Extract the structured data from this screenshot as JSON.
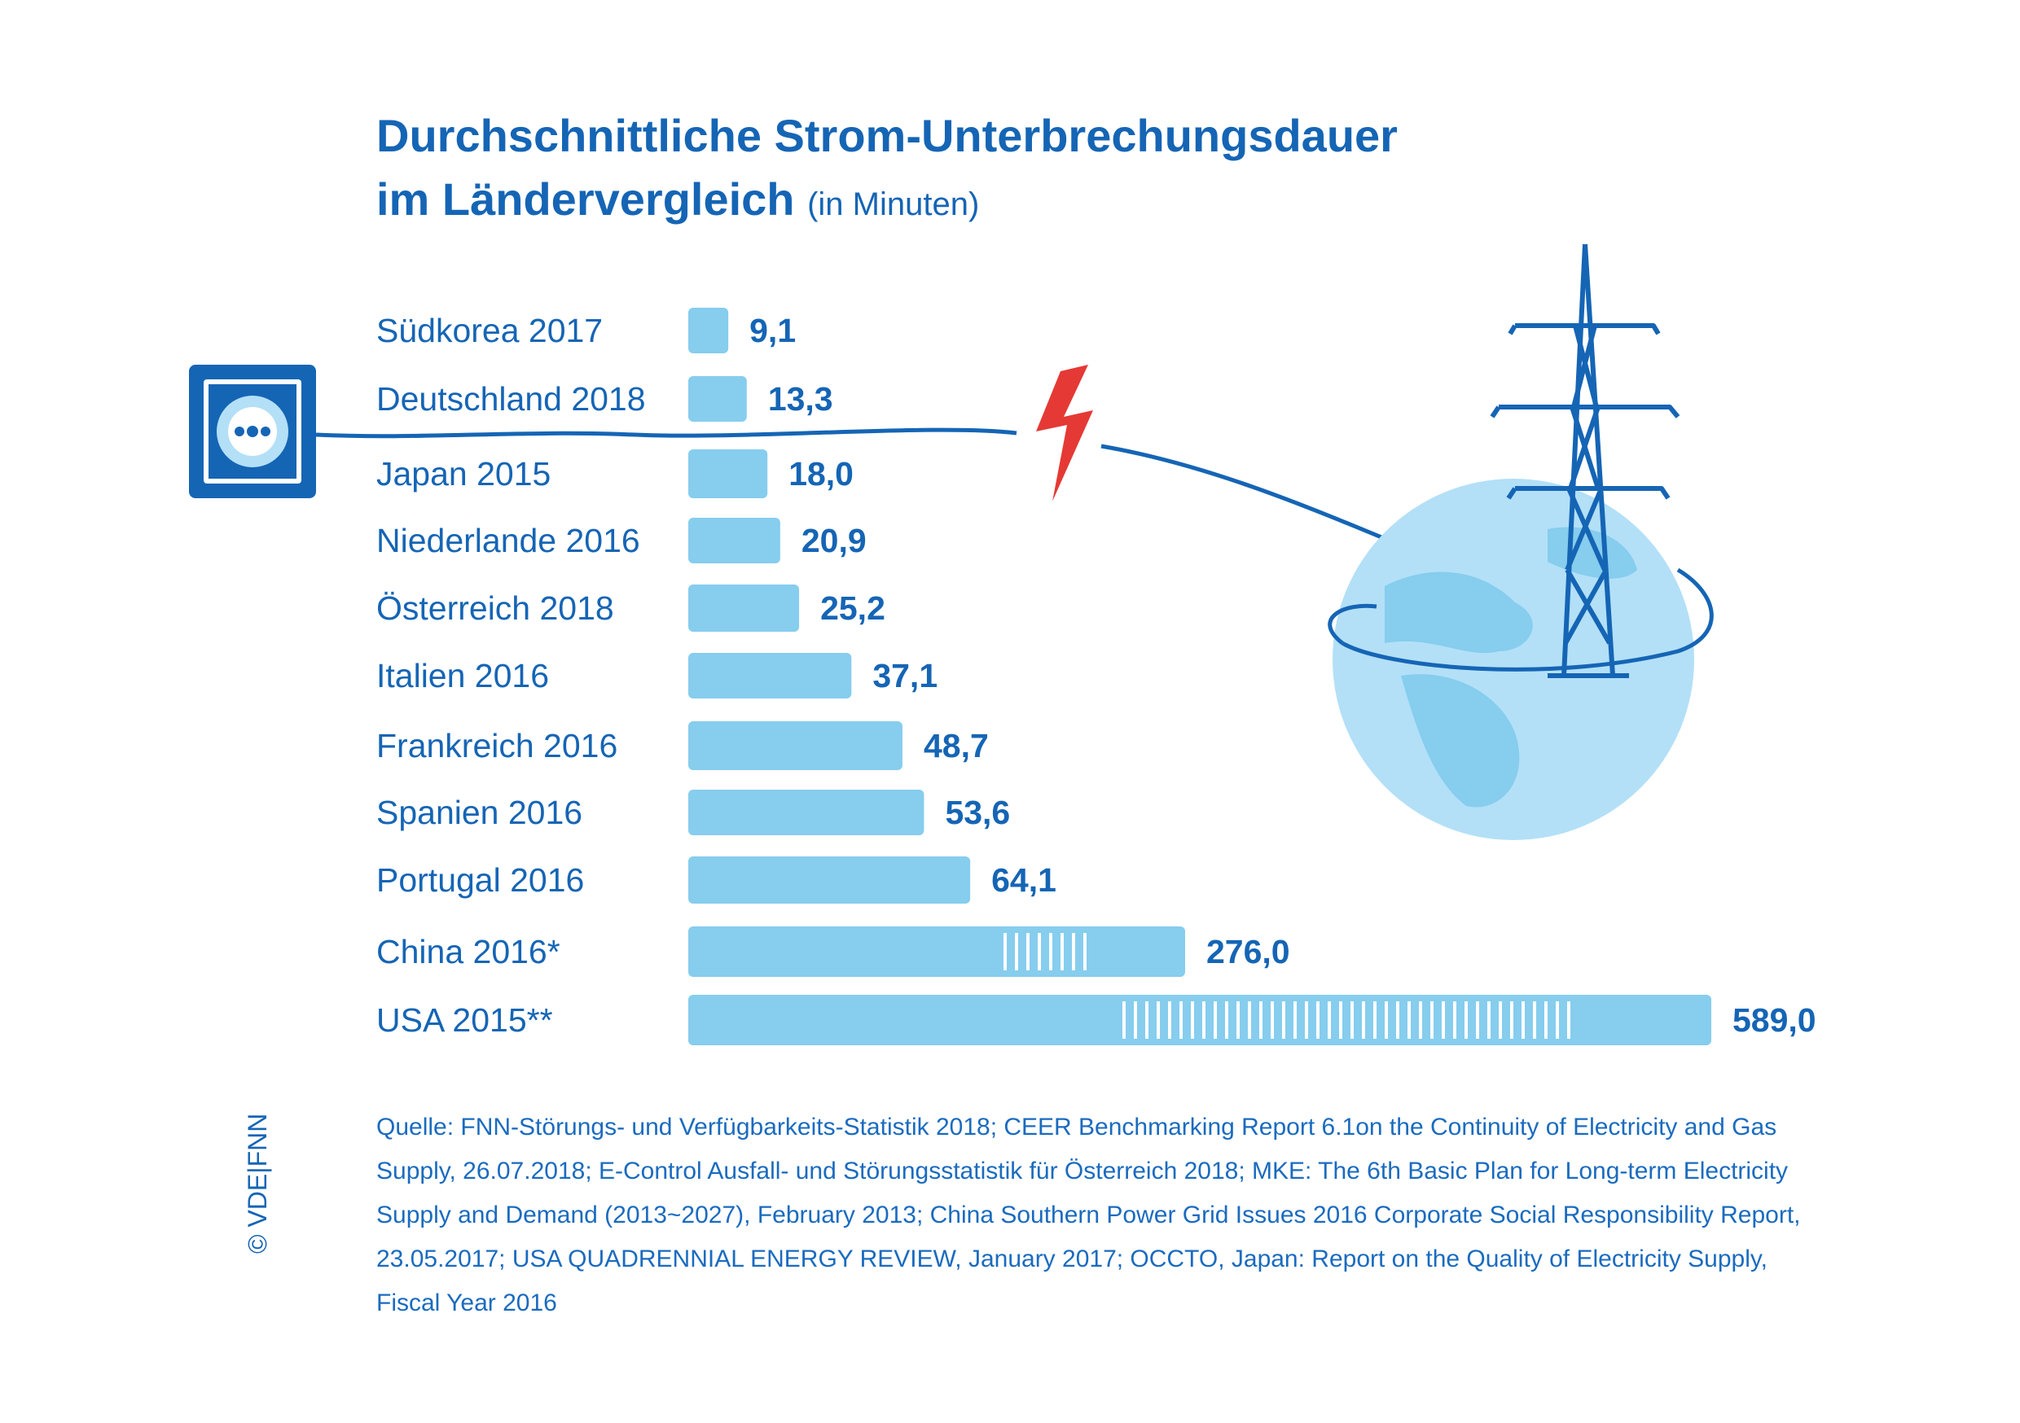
{
  "title_line1": "Durchschnittliche Strom-Unterbrechungsdauer",
  "title_line2": "im Ländervergleich",
  "title_unit": "(in Minuten)",
  "chart_data": {
    "type": "bar",
    "orientation": "horizontal",
    "categories": [
      "Südkorea 2017",
      "Deutschland 2018",
      "Japan 2015",
      "Niederlande 2016",
      "Österreich 2018",
      "Italien 2016",
      "Frankreich 2016",
      "Spanien 2016",
      "Portugal 2016",
      "China 2016*",
      "USA 2015**"
    ],
    "values": [
      9.1,
      13.3,
      18.0,
      20.9,
      25.2,
      37.1,
      48.7,
      53.6,
      64.1,
      276.0,
      589.0
    ],
    "value_labels": [
      "9,1",
      "13,3",
      "18,0",
      "20,9",
      "25,2",
      "37,1",
      "48,7",
      "53,6",
      "64,1",
      "276,0",
      "589,0"
    ],
    "axis_breaks": [
      "China 2016*",
      "USA 2015**"
    ],
    "bar_color": "#86cdee",
    "text_color": "#1565b5",
    "grid": false,
    "legend": "none"
  },
  "source": "Quelle: FNN-Störungs- und Verfügbarkeits-Statistik 2018; CEER Benchmarking Report 6.1on the Continuity of Electricity and Gas Supply, 26.07.2018; E-Control Ausfall- und Störungsstatistik für Österreich 2018; MKE: The 6th Basic Plan for Long-term Electricity Supply and Demand (2013~2027), February 2013; China Southern Power Grid Issues 2016 Corporate Social Responsibility Report, 23.05.2017; USA QUADRENNIAL ENERGY REVIEW, January 2017; OCCTO, Japan: Report on the Quality of Electricity Supply, Fiscal Year 2016",
  "copyright": "© VDE|FNN",
  "illustration": {
    "icons": [
      "power-socket-icon",
      "cable-icon",
      "lightning-bolt-icon",
      "globe-icon",
      "power-pylon-icon"
    ],
    "colors": {
      "blue": "#1565b5",
      "light_blue": "#86cdee",
      "globe": "#b3e0f7",
      "bolt": "#e53935"
    }
  }
}
